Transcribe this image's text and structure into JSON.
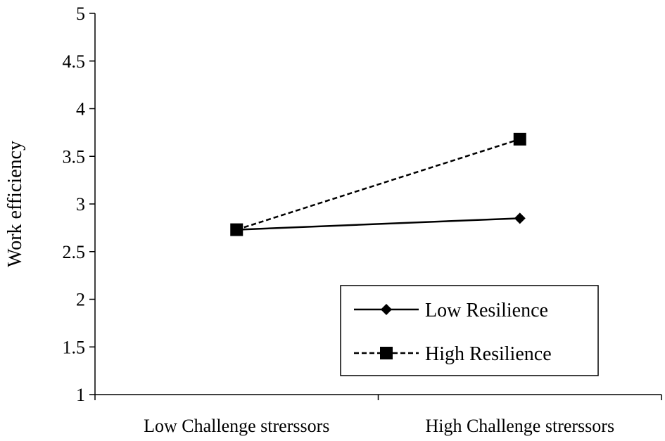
{
  "chart_data": {
    "type": "line",
    "ylabel": "Work efficiency",
    "ylim": [
      1,
      5
    ],
    "yticks": [
      "1",
      "1.5",
      "2",
      "2.5",
      "3",
      "3.5",
      "4",
      "4.5",
      "5"
    ],
    "categories": [
      "Low Challenge strerssors",
      "High Challenge strerssors"
    ],
    "series": [
      {
        "name": "Low Resilience",
        "values": [
          2.73,
          2.85
        ],
        "line": "solid",
        "marker": "diamond"
      },
      {
        "name": "High Resilience",
        "values": [
          2.73,
          3.68
        ],
        "line": "dashed",
        "marker": "square"
      }
    ],
    "legend_position": "bottom-right",
    "grid": false,
    "colors": {
      "line": "#000000",
      "background": "#ffffff"
    }
  }
}
